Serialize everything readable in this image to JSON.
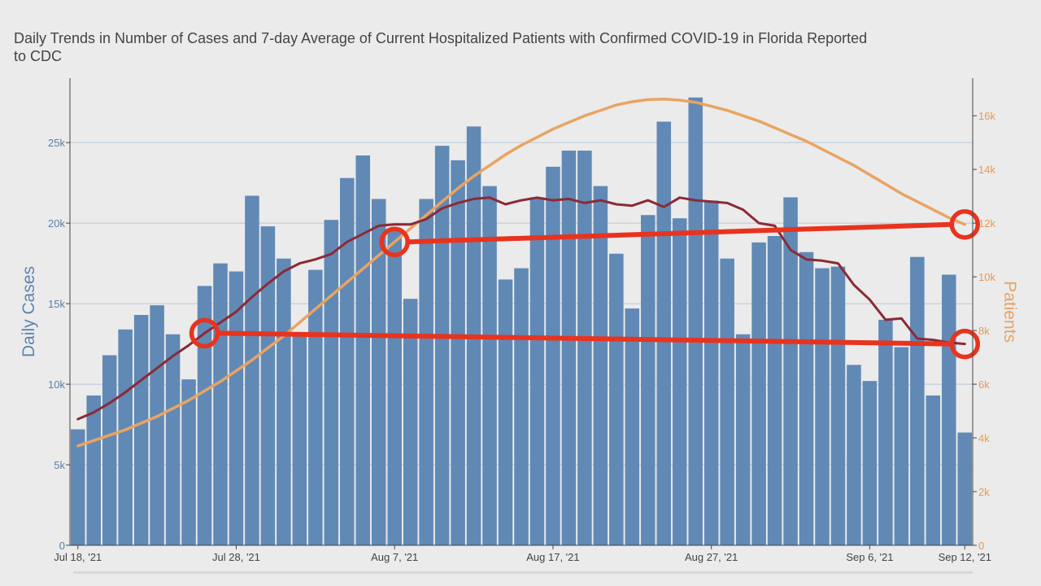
{
  "title_line1": "Daily Trends in Number of Cases and 7-day Average of Current Hospitalized Patients with Confirmed COVID-19 in Florida Reported",
  "title_line2": "to CDC",
  "colors": {
    "bars": "#6189b5",
    "hospitalized": "#e9a462",
    "cases_avg": "#8b2a36",
    "annotation": "#e8331f",
    "background": "#ebebeb"
  },
  "chart_data": {
    "type": "bar",
    "title": "Daily Trends in Number of Cases and 7-day Average of Current Hospitalized Patients with Confirmed COVID-19 in Florida Reported to CDC",
    "ylabel": "Daily Cases",
    "y2label": "Patients",
    "ylim": [
      0,
      29000
    ],
    "y2lim": [
      0,
      17400
    ],
    "yticks": [
      0,
      5000,
      10000,
      15000,
      20000,
      25000
    ],
    "ytick_labels": [
      "0",
      "5k",
      "10k",
      "15k",
      "20k",
      "25k"
    ],
    "y2ticks": [
      0,
      2000,
      4000,
      6000,
      8000,
      10000,
      12000,
      14000,
      16000
    ],
    "y2tick_labels": [
      "0",
      "2k",
      "4k",
      "6k",
      "8k",
      "10k",
      "12k",
      "14k",
      "16k"
    ],
    "xtick_labels": [
      "Jul 18, '21",
      "Jul 28, '21",
      "Aug 7, '21",
      "Aug 17, '21",
      "Aug 27, '21",
      "Sep 6, '21",
      "Sep 12, '21"
    ],
    "xtick_index": [
      0,
      10,
      20,
      30,
      40,
      50,
      56
    ],
    "categories": [
      "2021-07-18",
      "2021-07-19",
      "2021-07-20",
      "2021-07-21",
      "2021-07-22",
      "2021-07-23",
      "2021-07-24",
      "2021-07-25",
      "2021-07-26",
      "2021-07-27",
      "2021-07-28",
      "2021-07-29",
      "2021-07-30",
      "2021-07-31",
      "2021-08-01",
      "2021-08-02",
      "2021-08-03",
      "2021-08-04",
      "2021-08-05",
      "2021-08-06",
      "2021-08-07",
      "2021-08-08",
      "2021-08-09",
      "2021-08-10",
      "2021-08-11",
      "2021-08-12",
      "2021-08-13",
      "2021-08-14",
      "2021-08-15",
      "2021-08-16",
      "2021-08-17",
      "2021-08-18",
      "2021-08-19",
      "2021-08-20",
      "2021-08-21",
      "2021-08-22",
      "2021-08-23",
      "2021-08-24",
      "2021-08-25",
      "2021-08-26",
      "2021-08-27",
      "2021-08-28",
      "2021-08-29",
      "2021-08-30",
      "2021-08-31",
      "2021-09-01",
      "2021-09-02",
      "2021-09-03",
      "2021-09-04",
      "2021-09-05",
      "2021-09-06",
      "2021-09-07",
      "2021-09-08",
      "2021-09-09",
      "2021-09-10",
      "2021-09-11",
      "2021-09-12"
    ],
    "series": [
      {
        "type": "bar",
        "axis": "left",
        "values": [
          7200,
          9300,
          11800,
          13400,
          14300,
          14900,
          13100,
          10300,
          16100,
          17500,
          17000,
          21700,
          19800,
          17800,
          13200,
          17100,
          20200,
          22800,
          24200,
          21500,
          19600,
          15300,
          21500,
          24800,
          23900,
          26000,
          22300,
          16500,
          17200,
          21600,
          23500,
          24500,
          24500,
          22300,
          18100,
          14700,
          20500,
          26300,
          20300,
          27800,
          21400,
          17800,
          13100,
          18800,
          19200,
          21600,
          18200,
          17200,
          17300,
          11200,
          10200,
          14000,
          12300,
          17900,
          9300,
          16800,
          7000
        ]
      },
      {
        "type": "line",
        "axis": "right",
        "values": [
          3700,
          3900,
          4100,
          4300,
          4550,
          4800,
          5100,
          5400,
          5750,
          6100,
          6500,
          6900,
          7350,
          7800,
          8300,
          8800,
          9300,
          9800,
          10300,
          10800,
          11300,
          11800,
          12300,
          12800,
          13300,
          13750,
          14150,
          14550,
          14900,
          15200,
          15500,
          15750,
          16000,
          16200,
          16400,
          16520,
          16600,
          16620,
          16580,
          16500,
          16350,
          16200,
          16000,
          15800,
          15550,
          15300,
          15050,
          14750,
          14450,
          14150,
          13800,
          13450,
          13100,
          12800,
          12500,
          12200,
          11950
        ]
      },
      {
        "type": "line",
        "axis": "right",
        "values": [
          4700,
          4950,
          5300,
          5700,
          6150,
          6600,
          7050,
          7450,
          7900,
          8300,
          8700,
          9250,
          9750,
          10200,
          10500,
          10650,
          10850,
          11300,
          11600,
          11900,
          11950,
          11950,
          12150,
          12550,
          12750,
          12900,
          12950,
          12700,
          12850,
          12950,
          12850,
          12900,
          12750,
          12850,
          12700,
          12650,
          12850,
          12600,
          12950,
          12850,
          12800,
          12750,
          12500,
          12000,
          11900,
          11000,
          10650,
          10600,
          10500,
          9700,
          9150,
          8400,
          8450,
          7700,
          7650,
          7550,
          7500
        ]
      }
    ],
    "annotations": [
      {
        "type": "circle",
        "series": 2,
        "index": 8
      },
      {
        "type": "circle",
        "series": 2,
        "index": 56
      },
      {
        "type": "circle",
        "series": 1,
        "index": 20
      },
      {
        "type": "circle",
        "series": 1,
        "index": 56
      }
    ],
    "grid": true
  }
}
